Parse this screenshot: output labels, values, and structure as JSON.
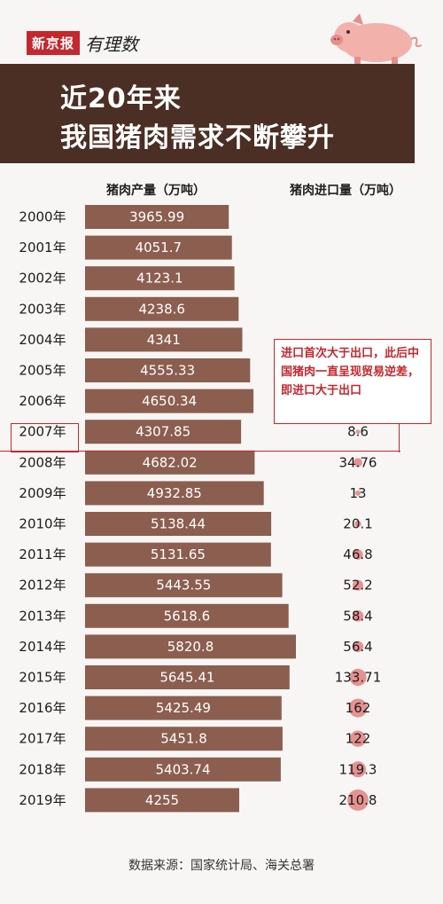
{
  "brand": {
    "box": "新京报",
    "script": "有理数"
  },
  "title": {
    "line1": "近20年来",
    "line2": "我国猪肉需求不断攀升"
  },
  "columns": {
    "production": "猪肉产量（万吨）",
    "imports": "猪肉进口量（万吨）"
  },
  "callout": "进口首次大于出口，此后中国猪肉一直呈现贸易逆差，即进口大于出口",
  "source": "数据来源：国家统计局、海关总署",
  "colors": {
    "header": "#4b2f24",
    "bar": "#8b5e4f",
    "bubble": "#e59291",
    "accent": "#c4272d"
  },
  "icons": {
    "mascot": "pig-icon"
  },
  "chart_data": {
    "type": "bar",
    "orientation": "horizontal",
    "categories": [
      "2000年",
      "2001年",
      "2002年",
      "2003年",
      "2004年",
      "2005年",
      "2006年",
      "2007年",
      "2008年",
      "2009年",
      "2010年",
      "2011年",
      "2012年",
      "2013年",
      "2014年",
      "2015年",
      "2016年",
      "2017年",
      "2018年",
      "2019年"
    ],
    "series": [
      {
        "name": "猪肉产量（万吨）",
        "values": [
          3965.99,
          4051.7,
          4123.1,
          4238.6,
          4341,
          4555.33,
          4650.34,
          4307.85,
          4682.02,
          4932.85,
          5138.44,
          5131.65,
          5443.55,
          5618.6,
          5820.8,
          5645.41,
          5425.49,
          5451.8,
          5403.74,
          4255
        ]
      },
      {
        "name": "猪肉进口量（万吨）",
        "values": [
          null,
          null,
          null,
          null,
          null,
          null,
          null,
          8.6,
          34.76,
          13,
          20.1,
          46.8,
          52.2,
          58.4,
          56.4,
          133.71,
          162,
          122,
          119.3,
          210.8
        ]
      }
    ],
    "labels": {
      "production": [
        "3965.99",
        "4051.7",
        "4123.1",
        "4238.6",
        "4341",
        "4555.33",
        "4650.34",
        "4307.85",
        "4682.02",
        "4932.85",
        "5138.44",
        "5131.65",
        "5443.55",
        "5618.6",
        "5820.8",
        "5645.41",
        "5425.49",
        "5451.8",
        "5403.74",
        "4255"
      ],
      "imports": [
        "",
        "",
        "",
        "",
        "",
        "",
        "",
        "8.6",
        "34.76",
        "13",
        "20.1",
        "46.8",
        "52.2",
        "58.4",
        "56.4",
        "133.71",
        "162",
        "122",
        "119.3",
        "210.8"
      ]
    },
    "highlight": "2007年"
  }
}
